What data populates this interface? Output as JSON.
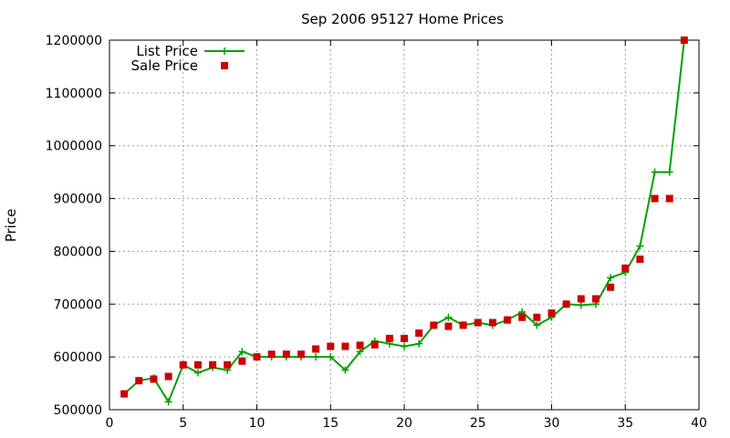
{
  "chart_data": {
    "type": "line",
    "title": "Sep 2006 95127 Home Prices",
    "xlabel": "",
    "ylabel": "Price",
    "xlim": [
      0,
      40
    ],
    "ylim": [
      500000,
      1200000
    ],
    "xticks": [
      0,
      5,
      10,
      15,
      20,
      25,
      30,
      35,
      40
    ],
    "yticks": [
      500000,
      600000,
      700000,
      800000,
      900000,
      1000000,
      1100000,
      1200000
    ],
    "grid": true,
    "legend_position": "top-left",
    "x": [
      1,
      2,
      3,
      4,
      5,
      6,
      7,
      8,
      9,
      10,
      11,
      12,
      13,
      14,
      15,
      16,
      17,
      18,
      19,
      20,
      21,
      22,
      23,
      24,
      25,
      26,
      27,
      28,
      29,
      30,
      31,
      32,
      33,
      34,
      35,
      36,
      37,
      38,
      39
    ],
    "series": [
      {
        "name": "List Price",
        "style": "line-with-plus-markers",
        "color": "#00a000",
        "values": [
          530000,
          555000,
          560000,
          515000,
          585000,
          570000,
          580000,
          575000,
          610000,
          600000,
          600000,
          600000,
          600000,
          600000,
          600000,
          575000,
          610000,
          630000,
          625000,
          620000,
          625000,
          660000,
          675000,
          660000,
          665000,
          660000,
          670000,
          685000,
          660000,
          675000,
          700000,
          698000,
          700000,
          750000,
          760000,
          810000,
          950000,
          950000,
          1200000
        ]
      },
      {
        "name": "Sale Price",
        "style": "square-markers",
        "color": "#cc0000",
        "values": [
          530000,
          555000,
          558000,
          563000,
          585000,
          585000,
          585000,
          585000,
          592000,
          600000,
          605000,
          605000,
          605000,
          615000,
          620000,
          620000,
          622000,
          623000,
          635000,
          635000,
          645000,
          660000,
          658000,
          660000,
          665000,
          665000,
          670000,
          675000,
          675000,
          683000,
          700000,
          710000,
          710000,
          732000,
          768000,
          785000,
          900000,
          900000,
          1200000
        ]
      }
    ]
  }
}
